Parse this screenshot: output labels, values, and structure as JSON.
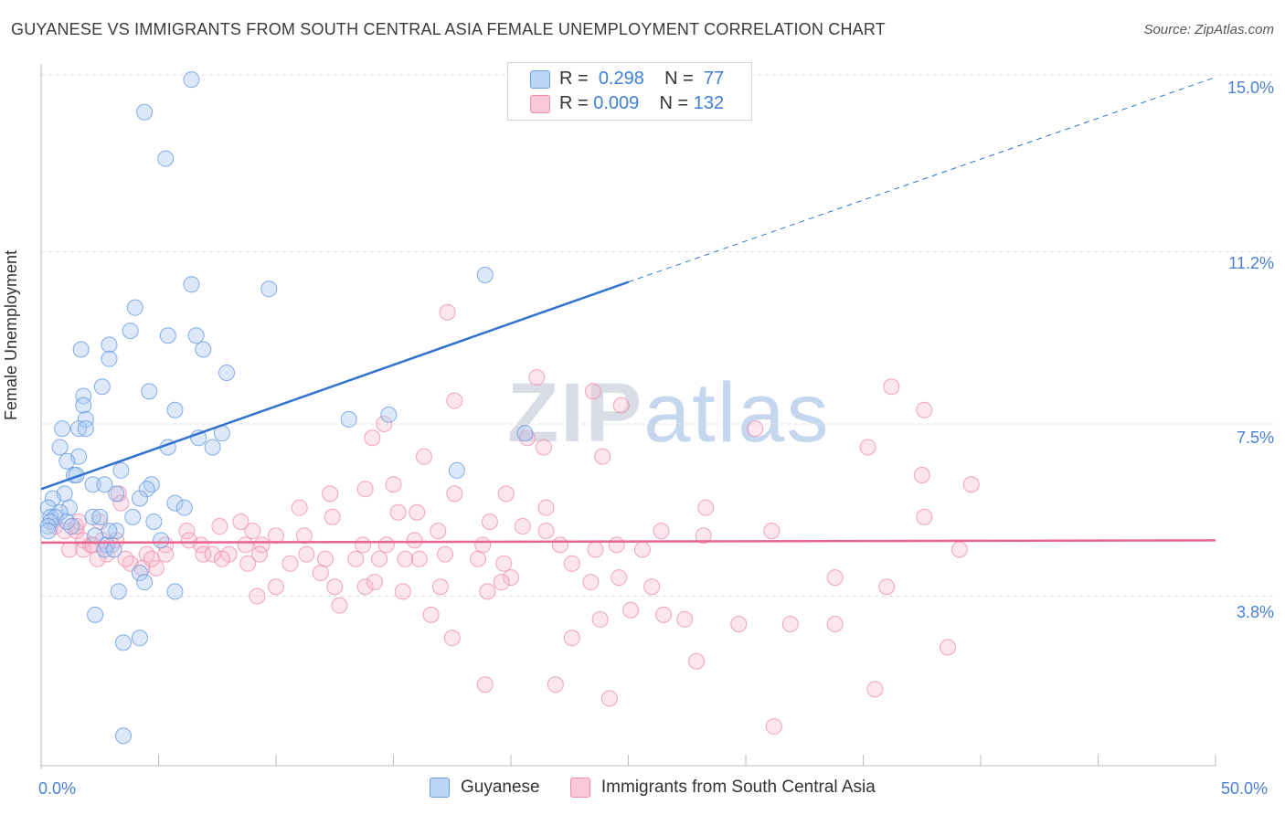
{
  "title": "GUYANESE VS IMMIGRANTS FROM SOUTH CENTRAL ASIA FEMALE UNEMPLOYMENT CORRELATION CHART",
  "source": "Source: ZipAtlas.com",
  "watermark": {
    "zip": "ZIP",
    "atlas": "atlas"
  },
  "legend": {
    "rows": [
      {
        "r_label": "R =",
        "r_value": "0.298",
        "n_label": "N =",
        "n_value": "77"
      },
      {
        "r_label": "R =",
        "r_value": "0.009",
        "n_label": "N =",
        "n_value": "132"
      }
    ]
  },
  "bottom_legend": [
    "Guyanese",
    "Immigrants from South Central Asia"
  ],
  "colors": {
    "blue_fill": "#a9c8f0",
    "blue_stroke": "#6d9fe0",
    "blue_line": "#2f72cf",
    "pink_fill": "#f5b8cb",
    "pink_stroke": "#ec8fab",
    "pink_line": "#e8658f",
    "tick_text": "#4a7fd4",
    "grid": "#dedede"
  },
  "chart_data": {
    "type": "scatter",
    "title": "GUYANESE VS IMMIGRANTS FROM SOUTH CENTRAL ASIA FEMALE UNEMPLOYMENT CORRELATION CHART",
    "ylabel": "Female Unemployment",
    "xlabel": "",
    "xlim": [
      0,
      50
    ],
    "ylim": [
      0,
      15.6
    ],
    "x_tick_labels": [
      "0.0%",
      "50.0%"
    ],
    "y_ticks": [
      3.8,
      7.5,
      11.2,
      15.0
    ],
    "y_tick_labels": [
      "3.8%",
      "7.5%",
      "11.2%",
      "15.0%"
    ],
    "grid": "horizontal dashed",
    "legend_position": "top-center",
    "series": [
      {
        "name": "Guyanese",
        "R": 0.298,
        "N": 77,
        "trend": {
          "x": [
            0,
            25
          ],
          "y": [
            6.1,
            10.55
          ],
          "extended_to": [
            50,
            14.95
          ]
        },
        "points": [
          [
            6.4,
            14.9
          ],
          [
            4.4,
            14.2
          ],
          [
            5.3,
            13.2
          ],
          [
            18.9,
            10.7
          ],
          [
            6.4,
            10.5
          ],
          [
            9.7,
            10.4
          ],
          [
            4,
            10
          ],
          [
            3.8,
            9.5
          ],
          [
            5.4,
            9.4
          ],
          [
            6.6,
            9.4
          ],
          [
            2.9,
            9.2
          ],
          [
            1.7,
            9.1
          ],
          [
            6.9,
            9.1
          ],
          [
            2.9,
            8.9
          ],
          [
            7.9,
            8.6
          ],
          [
            2.6,
            8.3
          ],
          [
            4.6,
            8.2
          ],
          [
            1.8,
            8.1
          ],
          [
            1.8,
            7.9
          ],
          [
            5.7,
            7.8
          ],
          [
            1.9,
            7.6
          ],
          [
            13.1,
            7.6
          ],
          [
            14.8,
            7.7
          ],
          [
            1.6,
            7.4
          ],
          [
            1.9,
            7.4
          ],
          [
            0.9,
            7.4
          ],
          [
            7.7,
            7.3
          ],
          [
            20.6,
            7.3
          ],
          [
            6.7,
            7.2
          ],
          [
            0.8,
            7
          ],
          [
            5.4,
            7
          ],
          [
            7.3,
            7
          ],
          [
            1.6,
            6.8
          ],
          [
            1.1,
            6.7
          ],
          [
            3.4,
            6.5
          ],
          [
            17.7,
            6.5
          ],
          [
            1.4,
            6.4
          ],
          [
            1.5,
            6.4
          ],
          [
            2.2,
            6.2
          ],
          [
            2.7,
            6.2
          ],
          [
            4.7,
            6.2
          ],
          [
            4.5,
            6.1
          ],
          [
            3.2,
            6
          ],
          [
            1,
            6
          ],
          [
            4.2,
            5.9
          ],
          [
            0.5,
            5.9
          ],
          [
            5.7,
            5.8
          ],
          [
            6.1,
            5.7
          ],
          [
            0.3,
            5.7
          ],
          [
            1.2,
            5.7
          ],
          [
            0.4,
            5.5
          ],
          [
            0.8,
            5.6
          ],
          [
            0.6,
            5.5
          ],
          [
            1.1,
            5.4
          ],
          [
            2.2,
            5.5
          ],
          [
            2.5,
            5.5
          ],
          [
            0.4,
            5.4
          ],
          [
            0.3,
            5.3
          ],
          [
            3.2,
            5.2
          ],
          [
            2.3,
            5.1
          ],
          [
            5.1,
            5
          ],
          [
            2.8,
            4.9
          ],
          [
            2.7,
            4.8
          ],
          [
            3.1,
            4.8
          ],
          [
            4.2,
            4.3
          ],
          [
            4.4,
            4.1
          ],
          [
            3.3,
            3.9
          ],
          [
            5.7,
            3.9
          ],
          [
            2.3,
            3.4
          ],
          [
            3.5,
            2.8
          ],
          [
            4.2,
            2.9
          ],
          [
            3.5,
            0.8
          ],
          [
            0.3,
            5.2
          ],
          [
            1.3,
            5.3
          ],
          [
            2.9,
            5.2
          ],
          [
            3.9,
            5.5
          ],
          [
            4.8,
            5.4
          ]
        ]
      },
      {
        "name": "Immigrants from South Central Asia",
        "R": 0.009,
        "N": 132,
        "trend": {
          "x": [
            0,
            50
          ],
          "y": [
            4.95,
            5.0
          ]
        },
        "points": [
          [
            17.3,
            9.9
          ],
          [
            21.1,
            8.5
          ],
          [
            36.2,
            8.3
          ],
          [
            23.5,
            8.2
          ],
          [
            17.6,
            8
          ],
          [
            24.7,
            7.9
          ],
          [
            37.6,
            7.8
          ],
          [
            14.6,
            7.5
          ],
          [
            30.4,
            7.4
          ],
          [
            20.7,
            7.2
          ],
          [
            14.1,
            7.2
          ],
          [
            21.4,
            7
          ],
          [
            35.2,
            7
          ],
          [
            16.3,
            6.8
          ],
          [
            23.9,
            6.8
          ],
          [
            37.5,
            6.4
          ],
          [
            39.6,
            6.2
          ],
          [
            15,
            6.2
          ],
          [
            13.8,
            6.1
          ],
          [
            12.3,
            6
          ],
          [
            17.6,
            6
          ],
          [
            19.8,
            6
          ],
          [
            3.3,
            6
          ],
          [
            3.4,
            5.8
          ],
          [
            11,
            5.7
          ],
          [
            16,
            5.6
          ],
          [
            15.2,
            5.6
          ],
          [
            21.5,
            5.7
          ],
          [
            28.3,
            5.7
          ],
          [
            37.6,
            5.5
          ],
          [
            12.4,
            5.5
          ],
          [
            2.5,
            5.4
          ],
          [
            8.5,
            5.4
          ],
          [
            7.6,
            5.3
          ],
          [
            19.1,
            5.4
          ],
          [
            20.5,
            5.3
          ],
          [
            0.6,
            5.3
          ],
          [
            1,
            5.2
          ],
          [
            1.5,
            5.2
          ],
          [
            6.2,
            5.2
          ],
          [
            9,
            5.2
          ],
          [
            10,
            5.1
          ],
          [
            11.2,
            5.1
          ],
          [
            16.9,
            5.2
          ],
          [
            26.4,
            5.2
          ],
          [
            28.2,
            5.1
          ],
          [
            21.5,
            5.2
          ],
          [
            31.1,
            5.2
          ],
          [
            1.8,
            5
          ],
          [
            2.6,
            5
          ],
          [
            3.2,
            5
          ],
          [
            5.3,
            4.9
          ],
          [
            6.3,
            5
          ],
          [
            6.8,
            4.9
          ],
          [
            8.7,
            4.9
          ],
          [
            9.4,
            4.9
          ],
          [
            13.7,
            4.9
          ],
          [
            14.7,
            4.9
          ],
          [
            15.9,
            5
          ],
          [
            18.8,
            4.9
          ],
          [
            22.1,
            4.9
          ],
          [
            24.5,
            4.9
          ],
          [
            25.6,
            4.8
          ],
          [
            1.2,
            4.8
          ],
          [
            1.8,
            4.8
          ],
          [
            2.8,
            4.7
          ],
          [
            4.5,
            4.7
          ],
          [
            5.3,
            4.7
          ],
          [
            6.9,
            4.7
          ],
          [
            7.3,
            4.7
          ],
          [
            8,
            4.7
          ],
          [
            9.3,
            4.7
          ],
          [
            11.3,
            4.7
          ],
          [
            12.1,
            4.6
          ],
          [
            13.4,
            4.6
          ],
          [
            15.5,
            4.6
          ],
          [
            17.2,
            4.7
          ],
          [
            18.6,
            4.6
          ],
          [
            22.6,
            4.5
          ],
          [
            23.6,
            4.8
          ],
          [
            39.1,
            4.8
          ],
          [
            3.8,
            4.5
          ],
          [
            4.3,
            4.4
          ],
          [
            4.9,
            4.4
          ],
          [
            7.7,
            4.6
          ],
          [
            8.8,
            4.5
          ],
          [
            10.6,
            4.5
          ],
          [
            11.9,
            4.3
          ],
          [
            14.4,
            4.6
          ],
          [
            16.1,
            4.6
          ],
          [
            19.7,
            4.5
          ],
          [
            2.4,
            4.6
          ],
          [
            3.6,
            4.6
          ],
          [
            20,
            4.2
          ],
          [
            23.4,
            4.1
          ],
          [
            24.6,
            4.2
          ],
          [
            26,
            4
          ],
          [
            33.8,
            4.2
          ],
          [
            10,
            4
          ],
          [
            12.5,
            4
          ],
          [
            13.8,
            4
          ],
          [
            14.2,
            4.1
          ],
          [
            17,
            4
          ],
          [
            19,
            3.9
          ],
          [
            19.6,
            4.1
          ],
          [
            36,
            4
          ],
          [
            9.2,
            3.8
          ],
          [
            12.7,
            3.6
          ],
          [
            15.4,
            3.9
          ],
          [
            16.6,
            3.4
          ],
          [
            23.8,
            3.3
          ],
          [
            25.1,
            3.5
          ],
          [
            26.5,
            3.4
          ],
          [
            27.4,
            3.3
          ],
          [
            29.7,
            3.2
          ],
          [
            31.9,
            3.2
          ],
          [
            33.8,
            3.2
          ],
          [
            17.5,
            2.9
          ],
          [
            22.6,
            2.9
          ],
          [
            27.9,
            2.4
          ],
          [
            38.6,
            2.7
          ],
          [
            18.9,
            1.9
          ],
          [
            21.9,
            1.9
          ],
          [
            35.5,
            1.8
          ],
          [
            24.2,
            1.6
          ],
          [
            31.2,
            1
          ],
          [
            2.1,
            4.9
          ],
          [
            1.5,
            5.3
          ],
          [
            2.2,
            4.9
          ],
          [
            1.6,
            5.4
          ],
          [
            3,
            4.9
          ],
          [
            4.7,
            4.6
          ]
        ]
      }
    ]
  }
}
